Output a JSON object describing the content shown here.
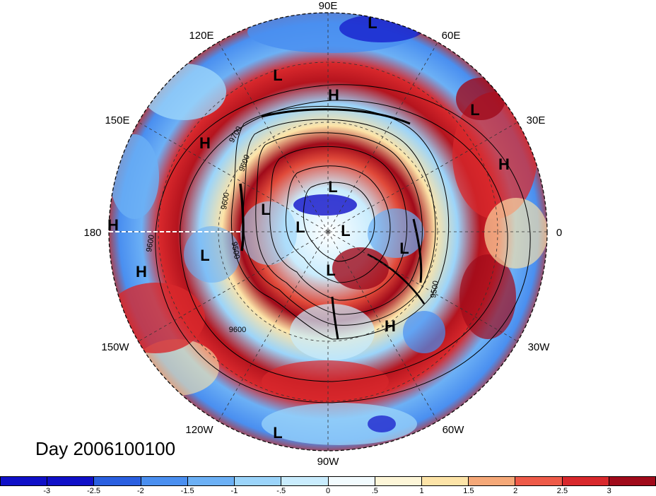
{
  "title": "Day 2006100100",
  "longitude_labels": [
    "90E",
    "60E",
    "30E",
    "0",
    "30W",
    "60W",
    "90W",
    "120W",
    "150W",
    "180",
    "150E",
    "120E"
  ],
  "pressure_systems": [
    "L",
    "L",
    "H",
    "L",
    "H",
    "H",
    "H",
    "L",
    "L",
    "L",
    "L",
    "L",
    "L",
    "L",
    "H",
    "H",
    "L",
    "H",
    "L"
  ],
  "contour_labels": [
    "9700",
    "9600",
    "9500",
    "9600",
    "9500",
    "9600",
    "9600"
  ],
  "colorbar": {
    "ticks": [
      "-3",
      "-2.5",
      "-2",
      "-1.5",
      "-1",
      "-.5",
      "0",
      ".5",
      "1",
      "1.5",
      "2",
      "2.5",
      "3"
    ],
    "colors": [
      "#1010c8",
      "#2a5fe0",
      "#4a8ff0",
      "#6cb0f5",
      "#9bd4fa",
      "#c9ecfd",
      "#f2fbfe",
      "#fdf6d8",
      "#fde4a8",
      "#f5a878",
      "#ee5a48",
      "#d8282c",
      "#a00a1a"
    ]
  }
}
